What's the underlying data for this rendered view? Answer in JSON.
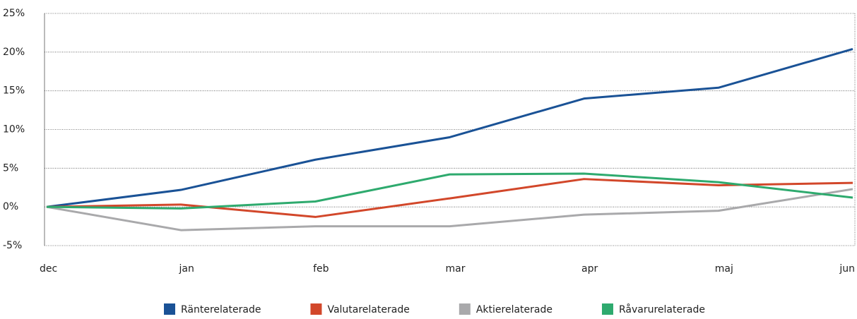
{
  "chart_data": {
    "type": "line",
    "categories": [
      "dec",
      "jan",
      "feb",
      "mar",
      "apr",
      "maj",
      "jun"
    ],
    "series": [
      {
        "name": "Ränterelaterade",
        "color": "#1a5296",
        "values": [
          0,
          2.2,
          6.1,
          9.0,
          14.0,
          15.4,
          20.4
        ]
      },
      {
        "name": "Valutarelaterade",
        "color": "#d2472a",
        "values": [
          0,
          0.3,
          -1.3,
          1.1,
          3.6,
          2.8,
          3.1
        ]
      },
      {
        "name": "Aktierelaterade",
        "color": "#a9a9ab",
        "values": [
          0,
          -3.0,
          -2.5,
          -2.5,
          -1.0,
          -0.5,
          2.3
        ]
      },
      {
        "name": "Råvarurelaterade",
        "color": "#2eaa6e",
        "values": [
          0,
          -0.2,
          0.7,
          4.2,
          4.3,
          3.2,
          1.2
        ]
      }
    ],
    "ylim": [
      -5,
      25
    ],
    "yticks": [
      {
        "value": -5,
        "label": "-5%"
      },
      {
        "value": 0,
        "label": "0%"
      },
      {
        "value": 5,
        "label": "5%"
      },
      {
        "value": 10,
        "label": "10%"
      },
      {
        "value": 15,
        "label": "15%"
      },
      {
        "value": 20,
        "label": "20%"
      },
      {
        "value": 25,
        "label": "25%"
      }
    ],
    "grid": true,
    "legend": "bottom"
  }
}
